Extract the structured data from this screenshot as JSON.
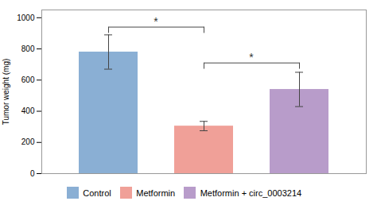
{
  "chart_data": {
    "type": "bar",
    "categories": [
      "Control",
      "Metformin",
      "Metformin + circ_0003214"
    ],
    "values": [
      780,
      305,
      540
    ],
    "errors": [
      110,
      30,
      110
    ],
    "colors": [
      "#8aafd4",
      "#f0a098",
      "#b89cca"
    ],
    "ylabel": "Tumor weight (mg)",
    "ylim": [
      0,
      1050
    ],
    "yticks": [
      0,
      200,
      400,
      600,
      800,
      1000
    ],
    "tick_labels": "y",
    "legend": "bottom",
    "annotations": [
      {
        "text": "*",
        "x_from": "Control",
        "x_to": "Metformin",
        "y": 940
      },
      {
        "text": "*",
        "x_from": "Metformin",
        "x_to": "Metformin + circ_0003214",
        "y": 710
      }
    ]
  }
}
